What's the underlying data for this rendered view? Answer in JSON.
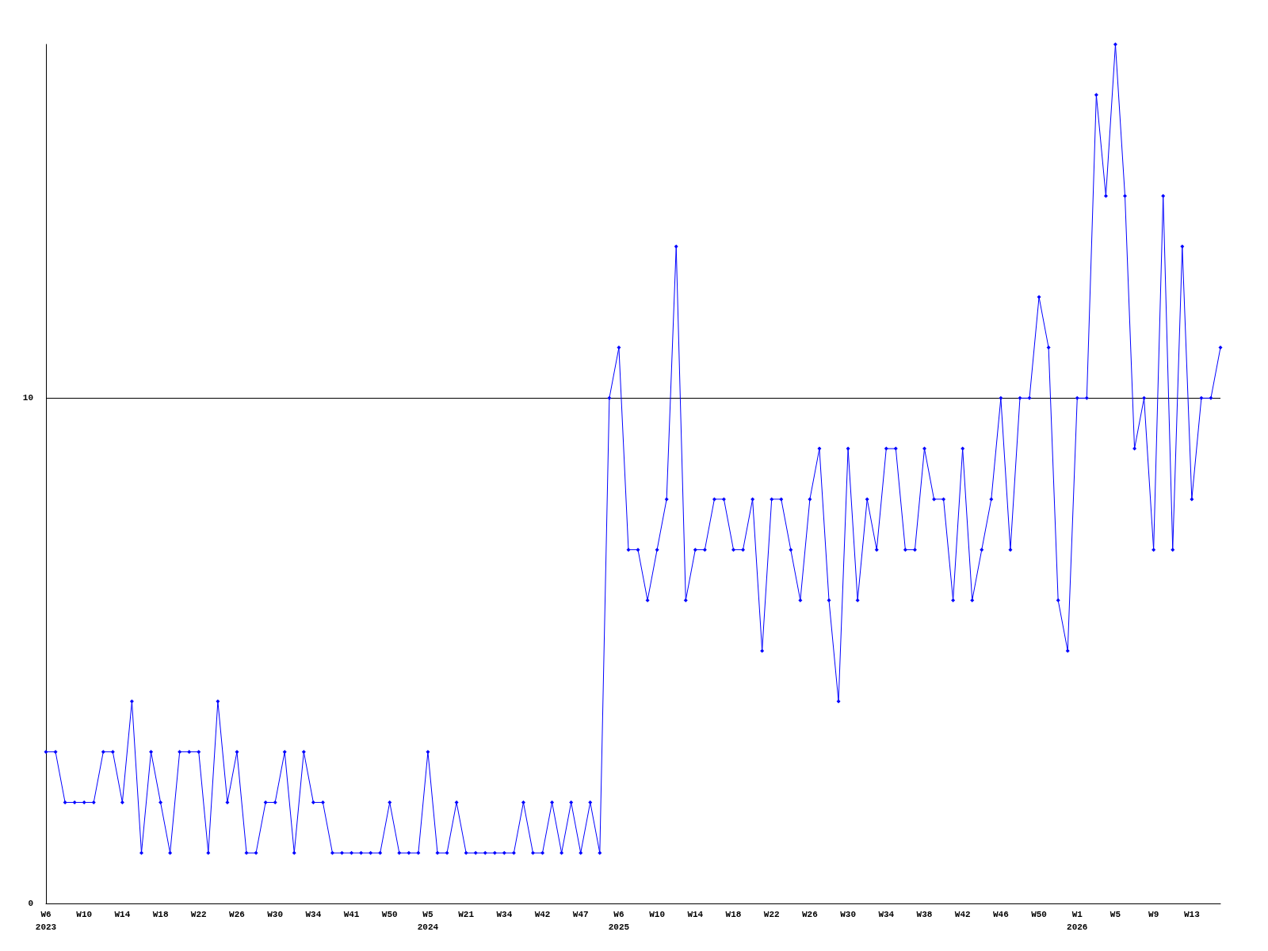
{
  "chart_data": {
    "type": "line",
    "categories": [
      "W6\n2023",
      null,
      null,
      null,
      "W10",
      null,
      null,
      null,
      "W14",
      null,
      null,
      null,
      "W18",
      null,
      null,
      null,
      "W22",
      null,
      null,
      null,
      "W26",
      null,
      null,
      null,
      "W30",
      null,
      null,
      null,
      "W34",
      null,
      null,
      null,
      "W41",
      null,
      null,
      null,
      "W50",
      null,
      null,
      null,
      "W5\n2024",
      null,
      null,
      null,
      "W21",
      null,
      null,
      null,
      "W34",
      null,
      null,
      null,
      "W42",
      null,
      null,
      null,
      "W47",
      null,
      null,
      null,
      "W6\n2025",
      null,
      null,
      null,
      "W10",
      null,
      null,
      null,
      "W14",
      null,
      null,
      null,
      "W18",
      null,
      null,
      null,
      "W22",
      null,
      null,
      null,
      "W26",
      null,
      null,
      null,
      "W30",
      null,
      null,
      null,
      "W34",
      null,
      null,
      null,
      "W38",
      null,
      null,
      null,
      "W42",
      null,
      null,
      null,
      "W46",
      null,
      null,
      null,
      "W50",
      null,
      null,
      null,
      "W1\n2026",
      null,
      null,
      null,
      "W5",
      null,
      null,
      null,
      "W9",
      null,
      null,
      null,
      "W13",
      null,
      null,
      null
    ],
    "series": [
      {
        "color": "#0000ff",
        "values": [
          3,
          3,
          2,
          2,
          2,
          2,
          3,
          3,
          2,
          4,
          1,
          3,
          2,
          1,
          3,
          3,
          3,
          1,
          4,
          2,
          3,
          1,
          1,
          2,
          2,
          3,
          1,
          3,
          2,
          2,
          1,
          1,
          1,
          1,
          1,
          1,
          2,
          1,
          1,
          1,
          3,
          1,
          1,
          2,
          1,
          1,
          1,
          1,
          1,
          1,
          2,
          1,
          1,
          2,
          1,
          2,
          1,
          2,
          1,
          10,
          11,
          7,
          7,
          6,
          7,
          8,
          13,
          6,
          7,
          7,
          8,
          8,
          7,
          7,
          8,
          5,
          8,
          8,
          7,
          6,
          8,
          9,
          6,
          4,
          9,
          6,
          8,
          7,
          9,
          9,
          7,
          7,
          9,
          8,
          8,
          6,
          9,
          6,
          7,
          8,
          10,
          7,
          10,
          10,
          12,
          11,
          6,
          5,
          10,
          10,
          16,
          14,
          17,
          14,
          9,
          10,
          7,
          14,
          7,
          13,
          8,
          10,
          10,
          11
        ]
      }
    ],
    "ylim": [
      0,
      17
    ],
    "yticks": [
      0,
      10
    ],
    "grid": "y",
    "marker": "diamond",
    "line_style": "solid"
  }
}
